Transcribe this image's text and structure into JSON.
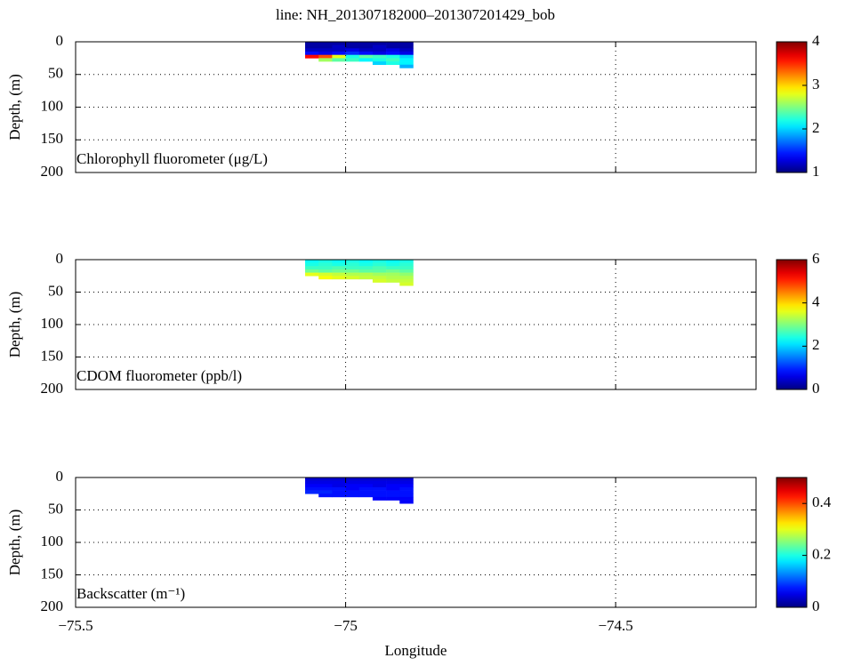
{
  "title": "line: NH_201307182000–201307201429_bob",
  "chart_data": [
    {
      "type": "heatmap",
      "label": "Chlorophyll fluorometer (μg/L)",
      "ylabel": "Depth, (m)",
      "colormap": "jet",
      "grid": true,
      "xlim": [
        -75.5,
        -74.24
      ],
      "xticks": [
        -75.5,
        -75,
        -74.5
      ],
      "ylim": [
        200,
        0
      ],
      "yticks": [
        0,
        50,
        100,
        150,
        200
      ],
      "clim": [
        1,
        4
      ],
      "cticks": [
        1,
        2,
        3,
        4
      ],
      "x_edges": [
        -75.075,
        -75.05,
        -75.025,
        -75.0,
        -74.975,
        -74.95,
        -74.925,
        -74.9,
        -74.875
      ],
      "depth_edges": [
        0,
        5,
        10,
        15,
        20,
        25,
        30,
        35,
        40
      ],
      "values": [
        [
          1.1,
          1.1,
          1.1,
          1.1,
          1.1,
          1.1,
          1.1,
          1.1
        ],
        [
          1.1,
          1.1,
          1.2,
          1.1,
          1.1,
          1.2,
          1.1,
          1.1
        ],
        [
          1.2,
          1.2,
          1.2,
          1.3,
          1.2,
          1.2,
          1.3,
          1.2
        ],
        [
          1.4,
          1.3,
          1.4,
          1.5,
          1.4,
          1.3,
          1.4,
          1.3
        ],
        [
          3.6,
          3.4,
          2.8,
          2.2,
          2.4,
          2.3,
          2.2,
          2.0
        ],
        [
          null,
          2.6,
          2.4,
          2.3,
          2.1,
          2.2,
          2.3,
          2.1
        ],
        [
          null,
          null,
          null,
          null,
          null,
          2.0,
          2.2,
          2.1
        ],
        [
          null,
          null,
          null,
          null,
          null,
          null,
          null,
          1.9
        ]
      ]
    },
    {
      "type": "heatmap",
      "label": "CDOM fluorometer (ppb/l)",
      "ylabel": "Depth, (m)",
      "colormap": "jet",
      "grid": true,
      "xlim": [
        -75.5,
        -74.24
      ],
      "xticks": [
        -75.5,
        -75,
        -74.5
      ],
      "ylim": [
        200,
        0
      ],
      "yticks": [
        0,
        50,
        100,
        150,
        200
      ],
      "clim": [
        0,
        6
      ],
      "cticks": [
        0,
        2,
        4,
        6
      ],
      "x_edges": [
        -75.075,
        -75.05,
        -75.025,
        -75.0,
        -74.975,
        -74.95,
        -74.925,
        -74.9,
        -74.875
      ],
      "depth_edges": [
        0,
        5,
        10,
        15,
        20,
        25,
        30,
        35,
        40
      ],
      "values": [
        [
          2.3,
          2.4,
          2.3,
          2.4,
          2.3,
          2.4,
          2.3,
          2.4
        ],
        [
          2.4,
          2.5,
          2.4,
          2.5,
          2.4,
          2.5,
          2.4,
          2.5
        ],
        [
          2.6,
          2.6,
          2.7,
          2.6,
          2.6,
          2.7,
          2.6,
          2.6
        ],
        [
          2.9,
          2.8,
          2.9,
          2.9,
          2.8,
          2.8,
          2.9,
          2.8
        ],
        [
          3.6,
          3.5,
          3.4,
          3.3,
          3.3,
          3.2,
          3.2,
          3.1
        ],
        [
          null,
          3.7,
          3.6,
          3.5,
          3.4,
          3.4,
          3.3,
          3.3
        ],
        [
          null,
          null,
          null,
          null,
          null,
          3.5,
          3.4,
          3.4
        ],
        [
          null,
          null,
          null,
          null,
          null,
          null,
          null,
          3.5
        ]
      ]
    },
    {
      "type": "heatmap",
      "label": "Backscatter (m⁻¹)",
      "ylabel": "Depth, (m)",
      "xlabel": "Longitude",
      "colormap": "jet",
      "grid": true,
      "xlim": [
        -75.5,
        -74.24
      ],
      "xticks": [
        {
          "value": -75.5,
          "label": "−75.5"
        },
        {
          "value": -75,
          "label": "−75"
        },
        {
          "value": -74.5,
          "label": "−74.5"
        }
      ],
      "ylim": [
        200,
        0
      ],
      "yticks": [
        0,
        50,
        100,
        150,
        200
      ],
      "clim": [
        0,
        0.5
      ],
      "cticks": [
        0,
        0.2,
        0.4
      ],
      "x_edges": [
        -75.075,
        -75.05,
        -75.025,
        -75.0,
        -74.975,
        -74.95,
        -74.925,
        -74.9,
        -74.875
      ],
      "depth_edges": [
        0,
        5,
        10,
        15,
        20,
        25,
        30,
        35,
        40
      ],
      "values": [
        [
          0.04,
          0.04,
          0.04,
          0.04,
          0.04,
          0.04,
          0.04,
          0.04
        ],
        [
          0.05,
          0.05,
          0.05,
          0.05,
          0.05,
          0.05,
          0.05,
          0.05
        ],
        [
          0.06,
          0.06,
          0.05,
          0.06,
          0.06,
          0.05,
          0.06,
          0.06
        ],
        [
          0.07,
          0.07,
          0.07,
          0.06,
          0.07,
          0.07,
          0.06,
          0.07
        ],
        [
          0.08,
          0.08,
          0.07,
          0.07,
          0.07,
          0.07,
          0.07,
          0.07
        ],
        [
          null,
          0.07,
          0.07,
          0.07,
          0.07,
          0.07,
          0.07,
          0.07
        ],
        [
          null,
          null,
          null,
          null,
          null,
          0.06,
          0.06,
          0.06
        ],
        [
          null,
          null,
          null,
          null,
          null,
          null,
          null,
          0.06
        ]
      ]
    }
  ]
}
